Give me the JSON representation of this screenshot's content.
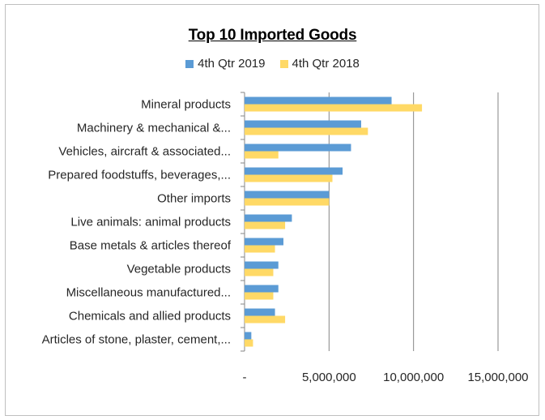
{
  "chart_data": {
    "type": "bar",
    "orientation": "horizontal",
    "title": "Top 10 Imported Goods",
    "categories": [
      "Mineral products",
      "Machinery & mechanical &...",
      "Vehicles, aircraft & associated...",
      "Prepared foodstuffs, beverages,...",
      "Other imports",
      "Live animals: animal products",
      "Base metals & articles thereof",
      "Vegetable products",
      "Miscellaneous manufactured...",
      "Chemicals and allied products",
      "Articles of stone, plaster, cement,..."
    ],
    "series": [
      {
        "name": "4th Qtr 2019",
        "color": "#5b9bd5",
        "values": [
          8700000,
          6900000,
          6300000,
          5800000,
          5000000,
          2800000,
          2300000,
          2000000,
          2000000,
          1800000,
          400000
        ]
      },
      {
        "name": "4th Qtr 2018",
        "color": "#ffd966",
        "values": [
          10500000,
          7300000,
          2000000,
          5200000,
          5000000,
          2400000,
          1800000,
          1700000,
          1700000,
          2400000,
          500000
        ]
      }
    ],
    "xlim": [
      0,
      15000000
    ],
    "xticks": [
      0,
      5000000,
      10000000,
      15000000
    ],
    "xtick_labels": [
      "-",
      "5,000,000",
      "10,000,000",
      "15,000,000"
    ],
    "grid": true,
    "legend_position": "top"
  }
}
